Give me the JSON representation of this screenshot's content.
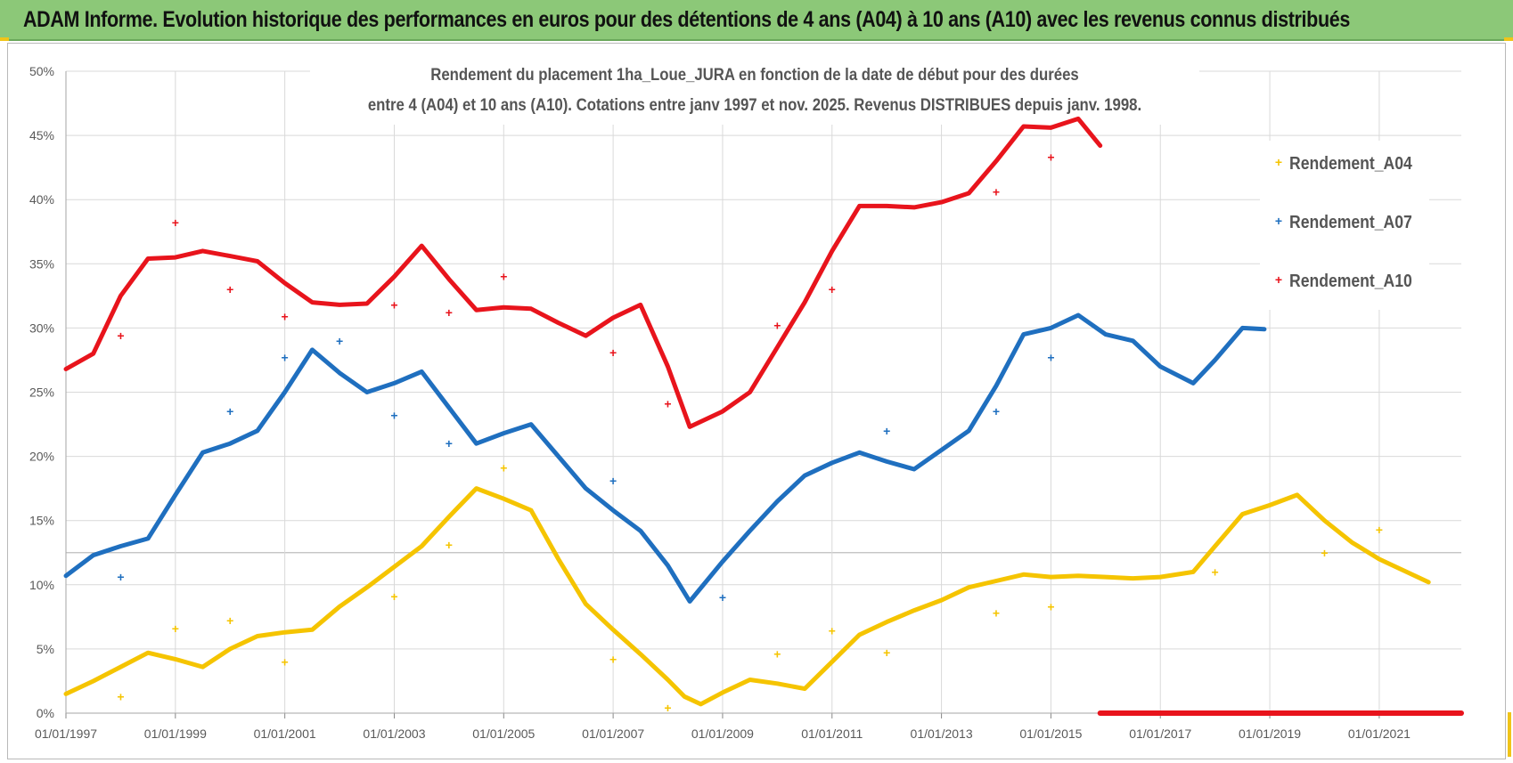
{
  "banner": {
    "title": "ADAM Informe. Evolution historique des performances en euros pour des détentions de 4 ans (A04) à 10 ans (A10) avec les revenus connus distribués"
  },
  "colors": {
    "A04": "#f5c400",
    "A07": "#1f6fbf",
    "A10": "#e8141c",
    "banner": "#8cc878"
  },
  "chart_data": {
    "type": "scatter",
    "title": "Rendement du placement 1ha_Loue_JURA en fonction de la date de début pour des durées entre 4 (A04) et 10 ans (A10).  Cotations entre janv 1997 et nov. 2025. Revenus DISTRIBUES depuis janv. 1998.",
    "title_lines": [
      "Rendement du placement 1ha_Loue_JURA en fonction de la date de début pour des durées",
      "entre 4 (A04) et 10 ans (A10).  Cotations entre janv 1997 et nov. 2025. Revenus DISTRIBUES depuis janv. 1998."
    ],
    "xlabel": "",
    "ylabel": "",
    "x_range": [
      1997.0,
      2022.5
    ],
    "ylim": [
      0,
      50
    ],
    "y_ticks": [
      "0%",
      "5%",
      "10%",
      "15%",
      "20%",
      "25%",
      "30%",
      "35%",
      "40%",
      "45%",
      "50%"
    ],
    "x_ticks": [
      "01/01/1997",
      "01/01/1999",
      "01/01/2001",
      "01/01/2003",
      "01/01/2005",
      "01/01/2007",
      "01/01/2009",
      "01/01/2011",
      "01/01/2013",
      "01/01/2015",
      "01/01/2017",
      "01/01/2019",
      "01/01/2021"
    ],
    "grid": true,
    "legend_position": "right",
    "series": [
      {
        "name": "Rendement_A04",
        "key": "A04",
        "x": [
          1997.0,
          1997.5,
          1998.0,
          1998.5,
          1999.0,
          1999.5,
          2000.0,
          2000.5,
          2001.0,
          2001.5,
          2002.0,
          2002.5,
          2003.0,
          2003.5,
          2004.0,
          2004.5,
          2005.0,
          2005.5,
          2006.0,
          2006.5,
          2007.0,
          2007.5,
          2008.0,
          2008.3,
          2008.6,
          2009.0,
          2009.5,
          2010.0,
          2010.5,
          2011.0,
          2011.5,
          2012.0,
          2012.5,
          2013.0,
          2013.5,
          2014.0,
          2014.5,
          2015.0,
          2015.5,
          2016.0,
          2016.5,
          2017.0,
          2017.6,
          2018.0,
          2018.5,
          2019.0,
          2019.5,
          2020.0,
          2020.5,
          2021.0,
          2021.5,
          2021.9
        ],
        "y": [
          1.5,
          2.5,
          3.6,
          4.7,
          4.2,
          3.6,
          5.0,
          6.0,
          6.3,
          6.5,
          8.3,
          9.8,
          11.4,
          13.0,
          15.3,
          17.5,
          16.7,
          15.8,
          12.0,
          8.5,
          6.5,
          4.6,
          2.6,
          1.3,
          0.7,
          1.6,
          2.6,
          2.3,
          1.9,
          4.0,
          6.1,
          7.1,
          8.0,
          8.8,
          9.8,
          10.3,
          10.8,
          10.6,
          10.7,
          10.6,
          10.5,
          10.6,
          11.0,
          13.0,
          15.5,
          16.2,
          17.0,
          15.0,
          13.3,
          12.0,
          11.0,
          10.2
        ]
      },
      {
        "name": "Rendement_A07",
        "key": "A07",
        "x": [
          1997.0,
          1997.5,
          1998.0,
          1998.5,
          1999.0,
          1999.5,
          2000.0,
          2000.5,
          2001.0,
          2001.5,
          2002.0,
          2002.5,
          2003.0,
          2003.5,
          2004.0,
          2004.5,
          2005.0,
          2005.5,
          2006.0,
          2006.5,
          2007.0,
          2007.5,
          2008.0,
          2008.4,
          2009.0,
          2009.5,
          2010.0,
          2010.5,
          2011.0,
          2011.5,
          2012.0,
          2012.5,
          2013.0,
          2013.5,
          2014.0,
          2014.5,
          2015.0,
          2015.5,
          2016.0,
          2016.5,
          2017.0,
          2017.6,
          2018.0,
          2018.5,
          2018.9
        ],
        "y": [
          10.7,
          12.3,
          13.0,
          13.6,
          17.0,
          20.3,
          21.0,
          22.0,
          25.0,
          28.3,
          26.5,
          25.0,
          25.7,
          26.6,
          23.8,
          21.0,
          21.8,
          22.5,
          20.0,
          17.5,
          15.8,
          14.2,
          11.5,
          8.7,
          11.8,
          14.2,
          16.5,
          18.5,
          19.5,
          20.3,
          19.6,
          19.0,
          20.5,
          22.0,
          25.5,
          29.5,
          30.0,
          31.0,
          29.5,
          29.0,
          27.0,
          25.7,
          27.5,
          30.0,
          29.9
        ]
      },
      {
        "name": "Rendement_A10",
        "key": "A10",
        "x": [
          1997.0,
          1997.5,
          1998.0,
          1998.5,
          1999.0,
          1999.5,
          2000.0,
          2000.5,
          2001.0,
          2001.5,
          2002.0,
          2002.5,
          2003.0,
          2003.5,
          2004.0,
          2004.5,
          2005.0,
          2005.5,
          2006.0,
          2006.5,
          2007.0,
          2007.5,
          2008.0,
          2008.4,
          2009.0,
          2009.5,
          2010.0,
          2010.5,
          2011.0,
          2011.5,
          2012.0,
          2012.5,
          2013.0,
          2013.5,
          2014.0,
          2014.5,
          2015.0,
          2015.5,
          2015.9
        ],
        "y": [
          26.8,
          28.0,
          32.5,
          35.4,
          35.5,
          36.0,
          35.6,
          35.2,
          33.5,
          32.0,
          31.8,
          31.9,
          34.0,
          36.4,
          33.8,
          31.4,
          31.6,
          31.5,
          30.4,
          29.4,
          30.8,
          31.8,
          27.0,
          22.3,
          23.5,
          25.0,
          28.5,
          32.0,
          36.0,
          39.5,
          39.5,
          39.4,
          39.8,
          40.5,
          43.0,
          45.7,
          45.6,
          46.3,
          44.2
        ]
      },
      {
        "name": "Rendement_A10 (zéro)",
        "key": "A10",
        "x": [
          2015.9,
          2022.5
        ],
        "y": [
          0,
          0
        ]
      }
    ],
    "scatter_points": {
      "A04": [
        [
          1998.0,
          1.3
        ],
        [
          1999.0,
          6.6
        ],
        [
          2000.0,
          7.2
        ],
        [
          2001.0,
          4.0
        ],
        [
          2003.0,
          9.1
        ],
        [
          2004.0,
          13.1
        ],
        [
          2005.0,
          19.1
        ],
        [
          2007.0,
          4.2
        ],
        [
          2008.0,
          0.4
        ],
        [
          2010.0,
          4.6
        ],
        [
          2011.0,
          6.4
        ],
        [
          2012.0,
          4.7
        ],
        [
          2014.0,
          7.8
        ],
        [
          2015.0,
          8.3
        ],
        [
          2018.0,
          11.0
        ],
        [
          2020.0,
          12.5
        ],
        [
          2021.0,
          14.3
        ]
      ],
      "A07": [
        [
          1998.0,
          10.6
        ],
        [
          2000.0,
          23.5
        ],
        [
          2001.0,
          27.7
        ],
        [
          2002.0,
          29.0
        ],
        [
          2003.0,
          23.2
        ],
        [
          2004.0,
          21.0
        ],
        [
          2007.0,
          18.1
        ],
        [
          2009.0,
          9.0
        ],
        [
          2012.0,
          22.0
        ],
        [
          2014.0,
          23.5
        ],
        [
          2015.0,
          27.7
        ]
      ],
      "A10": [
        [
          1998.0,
          29.4
        ],
        [
          1999.0,
          38.2
        ],
        [
          2000.0,
          33.0
        ],
        [
          2001.0,
          30.9
        ],
        [
          2003.0,
          31.8
        ],
        [
          2004.0,
          31.2
        ],
        [
          2005.0,
          34.0
        ],
        [
          2007.0,
          28.1
        ],
        [
          2008.0,
          24.1
        ],
        [
          2010.0,
          30.2
        ],
        [
          2011.0,
          33.0
        ],
        [
          2014.0,
          40.6
        ],
        [
          2015.0,
          43.3
        ]
      ]
    }
  }
}
